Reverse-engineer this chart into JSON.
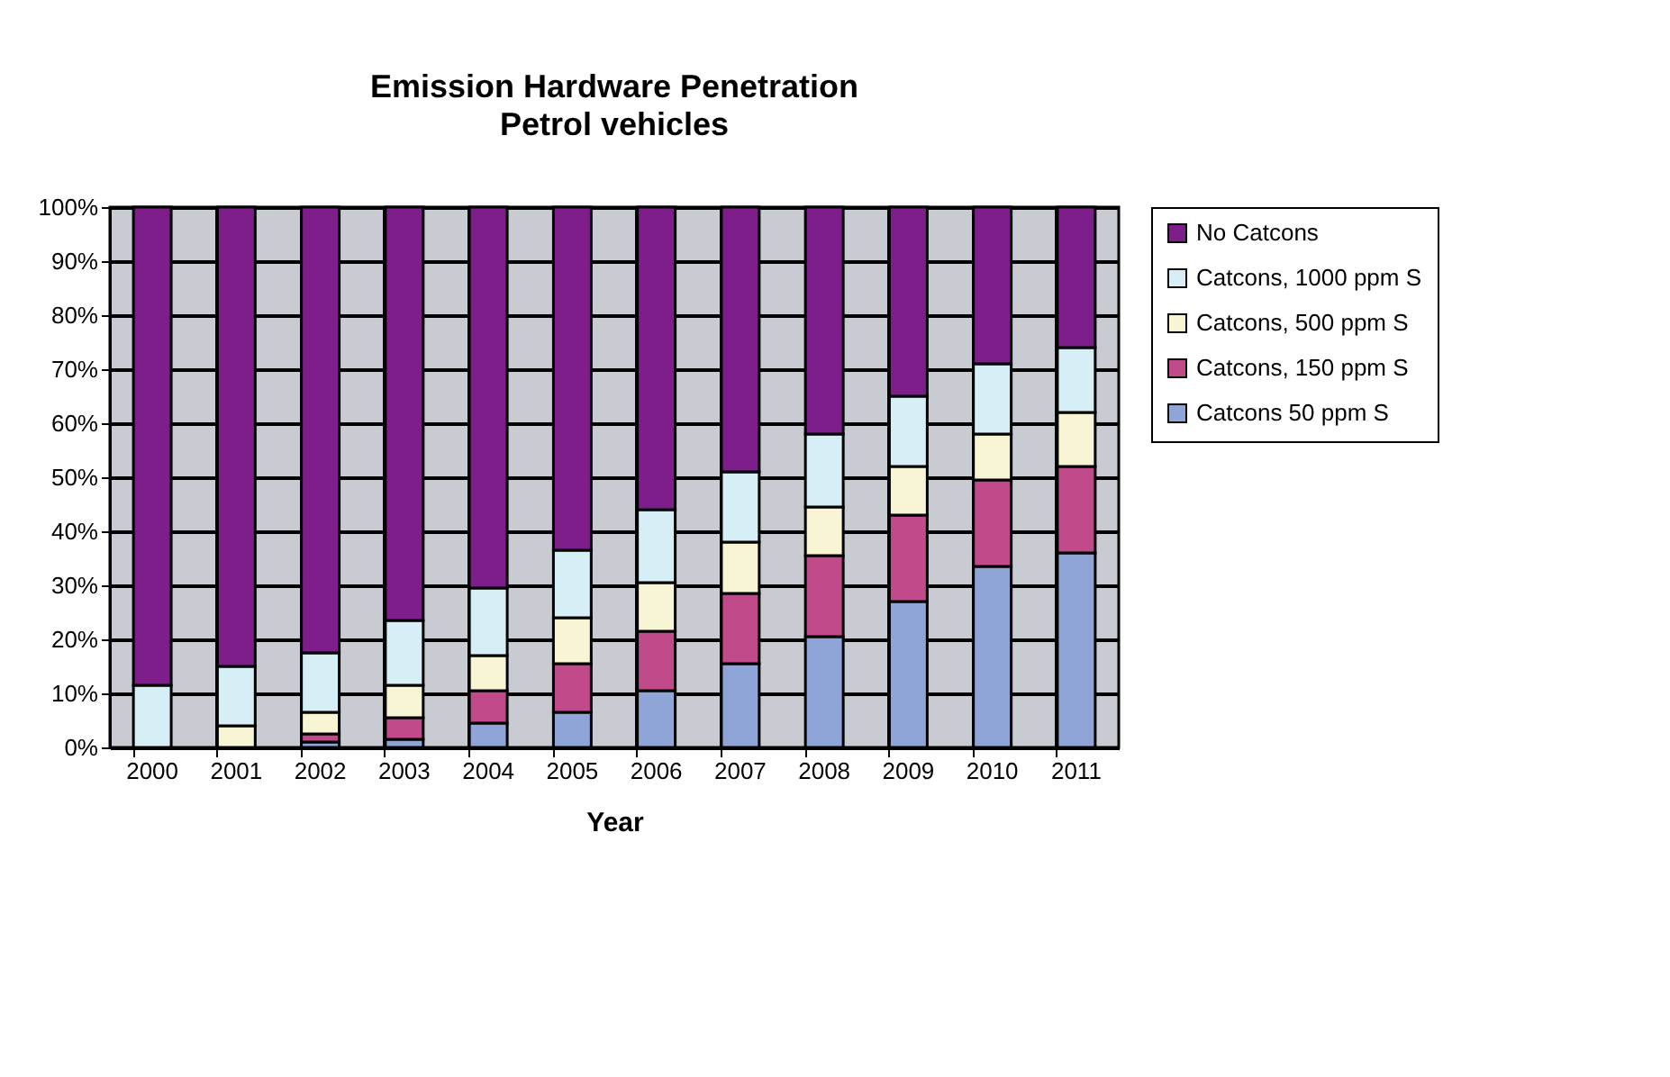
{
  "chart_data": {
    "type": "bar",
    "title": "Emission Hardware Penetration",
    "subtitle": "Petrol vehicles",
    "xlabel": "Year",
    "categories": [
      "2000",
      "2001",
      "2002",
      "2003",
      "2004",
      "2005",
      "2006",
      "2007",
      "2008",
      "2009",
      "2010",
      "2011"
    ],
    "stacked": true,
    "series": [
      {
        "name": "Catcons 50 ppm S",
        "color": "#8fa5d8",
        "values": [
          0,
          0,
          1,
          1.5,
          4.5,
          6.5,
          10.5,
          15.5,
          20.5,
          27,
          33.5,
          36
        ]
      },
      {
        "name": "Catcons, 150 ppm S",
        "color": "#c04a8a",
        "values": [
          null,
          0,
          1.5,
          4,
          6,
          9,
          11,
          13,
          15,
          16,
          16,
          16
        ]
      },
      {
        "name": "Catcons, 500 ppm S",
        "color": "#f8f5d5",
        "values": [
          null,
          4,
          4,
          6,
          6.5,
          8.5,
          9,
          9.5,
          9,
          9,
          8.5,
          10
        ]
      },
      {
        "name": "Catcons, 1000 ppm S",
        "color": "#d6eef5",
        "values": [
          11.5,
          11,
          11,
          12,
          12.5,
          12.5,
          13.5,
          13,
          13.5,
          13,
          13,
          12
        ]
      },
      {
        "name": "No Catcons",
        "color": "#7d1e8a",
        "values": [
          88.5,
          85,
          82.5,
          76.5,
          70.5,
          63.5,
          56,
          49,
          42,
          35,
          29,
          26
        ]
      }
    ],
    "ylim": [
      0,
      100
    ],
    "yticks": [
      {
        "value": 0,
        "label": "0%"
      },
      {
        "value": 10,
        "label": "10%"
      },
      {
        "value": 20,
        "label": "20%"
      },
      {
        "value": 30,
        "label": "30%"
      },
      {
        "value": 40,
        "label": "40%"
      },
      {
        "value": 50,
        "label": "50%"
      },
      {
        "value": 60,
        "label": "60%"
      },
      {
        "value": 70,
        "label": "70%"
      },
      {
        "value": 80,
        "label": "80%"
      },
      {
        "value": 90,
        "label": "90%"
      },
      {
        "value": 100,
        "label": "100%"
      }
    ],
    "grid": true,
    "legend": "right"
  }
}
